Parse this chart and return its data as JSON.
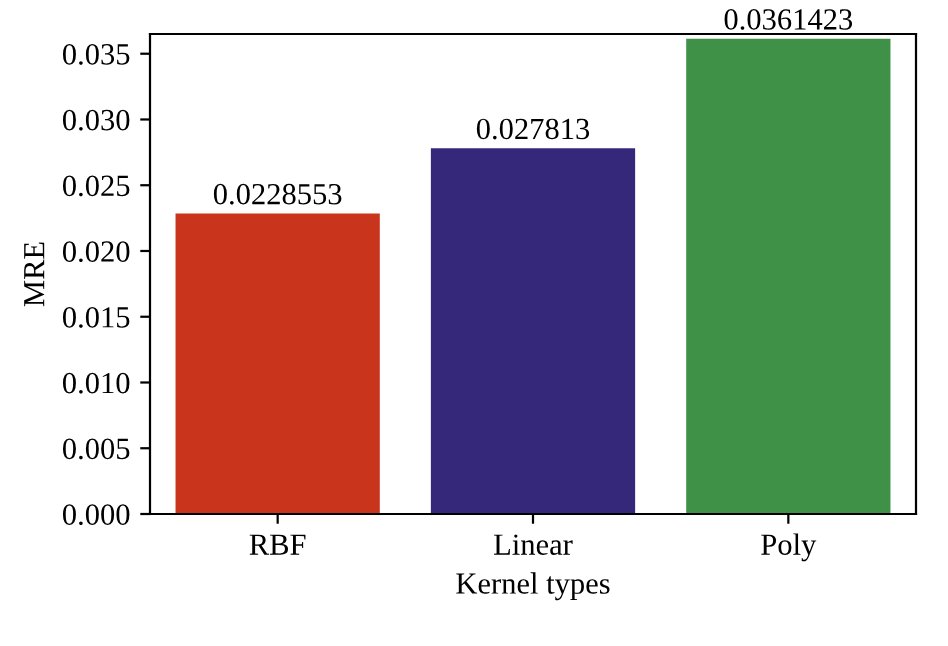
{
  "chart_data": {
    "type": "bar",
    "xlabel": "Kernel types",
    "ylabel": "MRE",
    "categories": [
      "RBF",
      "Linear",
      "Poly"
    ],
    "values": [
      0.0228553,
      0.027813,
      0.0361423
    ],
    "colors": [
      "#c8351c",
      "#35287b",
      "#3e9147"
    ],
    "value_labels": [
      "0.0228553",
      "0.027813",
      "0.0361423"
    ],
    "ylim": [
      0,
      0.0365
    ],
    "yticks": [
      {
        "value": 0,
        "label": "0.000"
      },
      {
        "value": 0.005,
        "label": "0.005"
      },
      {
        "value": 0.01,
        "label": "0.010"
      },
      {
        "value": 0.015,
        "label": "0.015"
      },
      {
        "value": 0.02,
        "label": "0.020"
      },
      {
        "value": 0.025,
        "label": "0.025"
      },
      {
        "value": 0.03,
        "label": "0.030"
      },
      {
        "value": 0.035,
        "label": "0.035"
      }
    ],
    "grid": false,
    "legend": false
  }
}
